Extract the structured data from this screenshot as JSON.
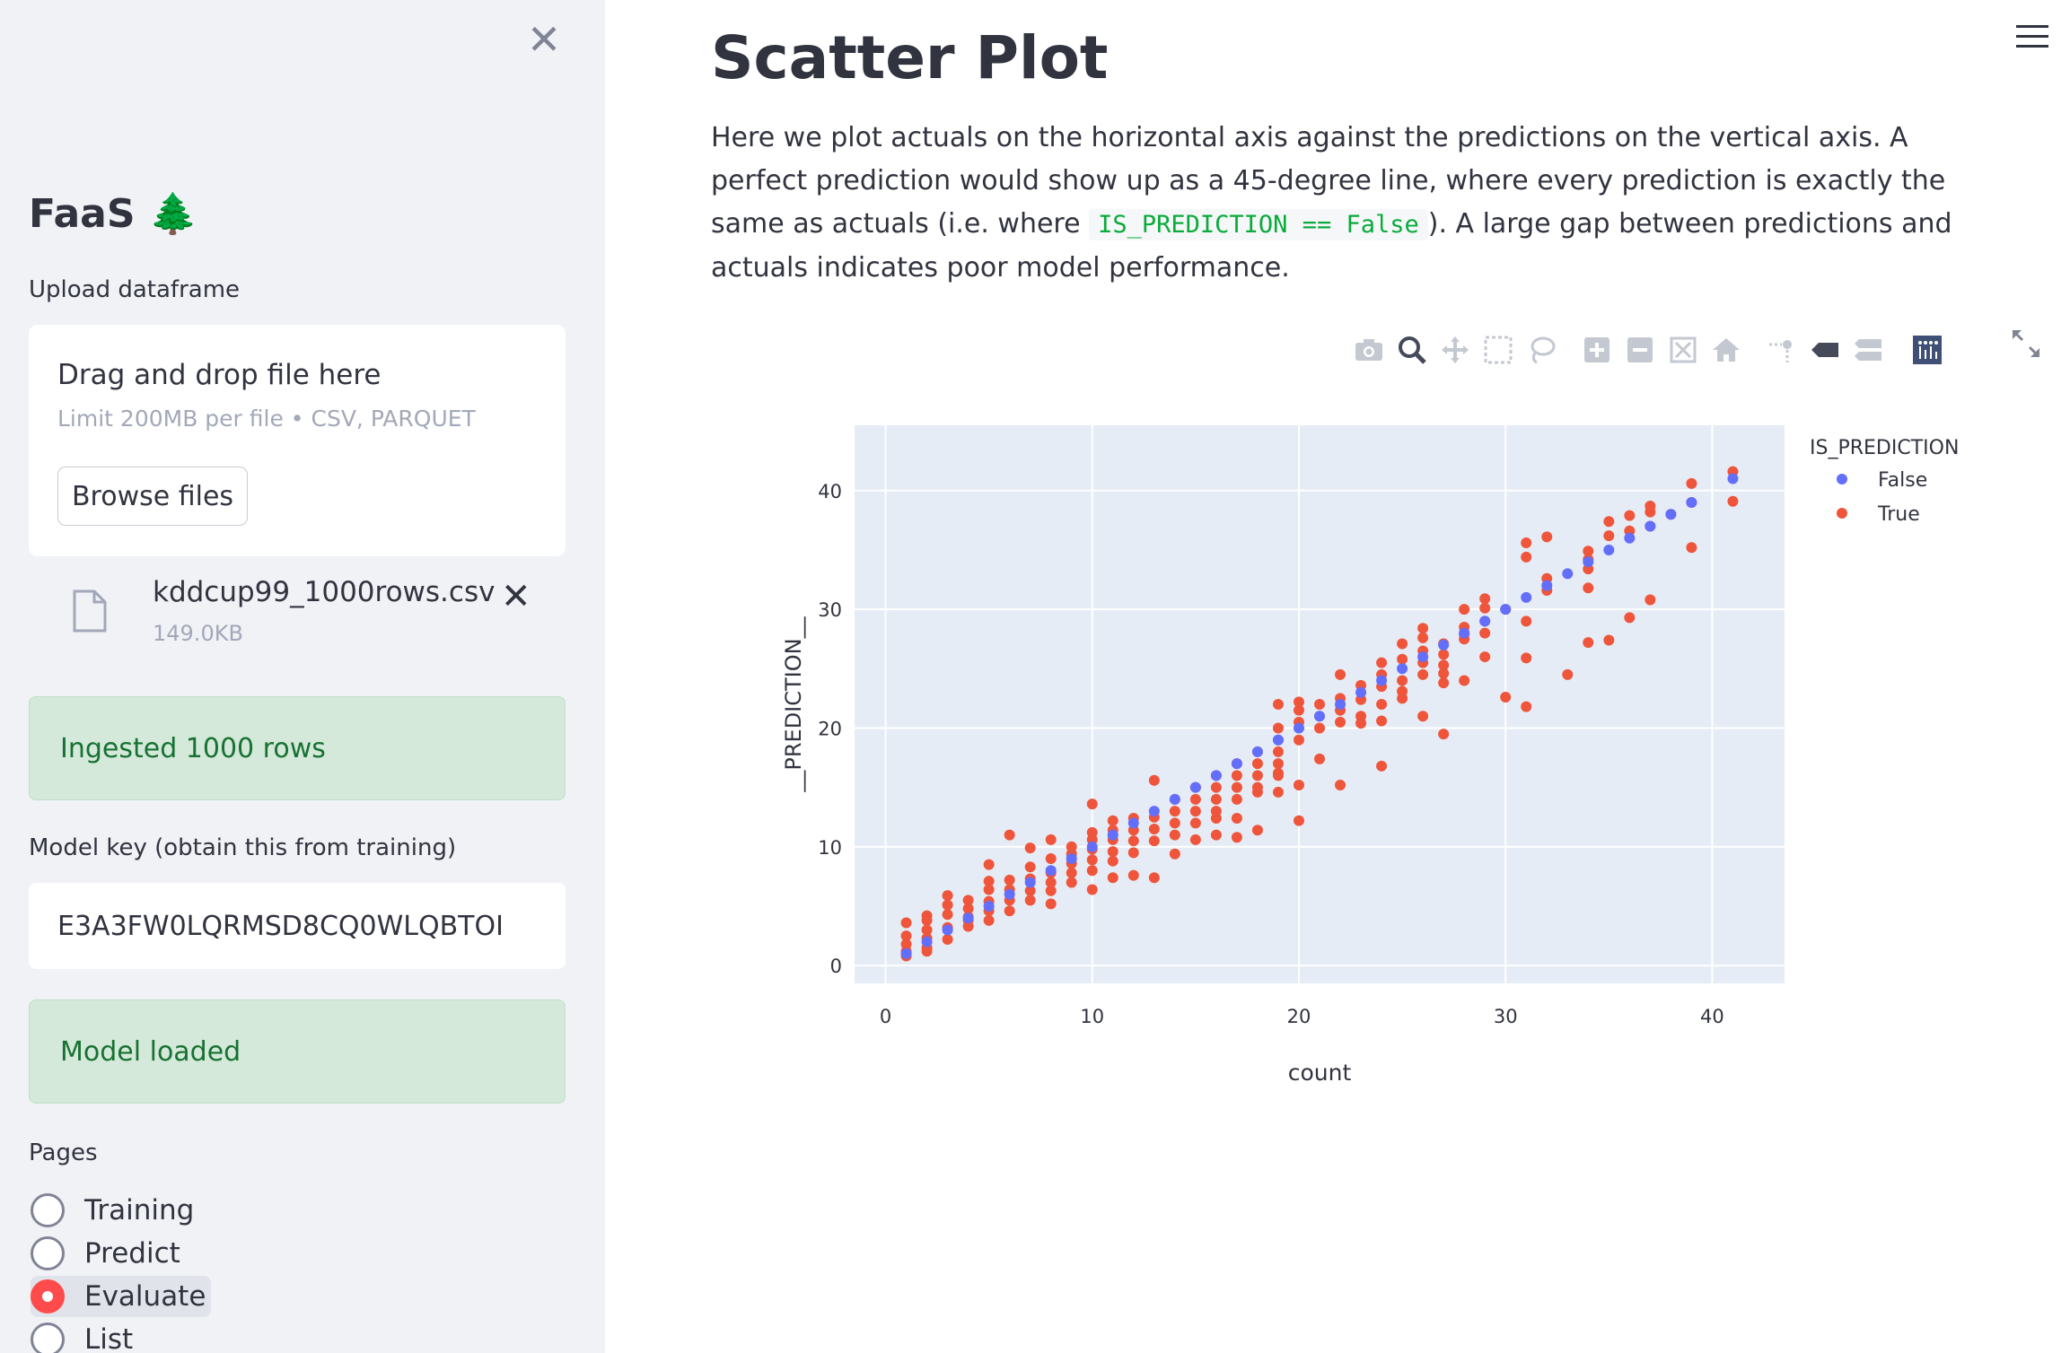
{
  "sidebar": {
    "brand": "FaaS 🌲",
    "upload_label": "Upload dataframe",
    "drop_title": "Drag and drop file here",
    "drop_limit": "Limit 200MB per file • CSV, PARQUET",
    "browse_label": "Browse files",
    "file_name": "kddcup99_1000rows.csv",
    "file_size": "149.0KB",
    "ingested_alert": "Ingested 1000 rows",
    "model_key_label": "Model key (obtain this from training)",
    "model_key_value": "E3A3FW0LQRMSD8CQ0WLQBTOI",
    "model_alert": "Model loaded",
    "pages_label": "Pages",
    "pages": [
      {
        "label": "Training",
        "selected": false
      },
      {
        "label": "Predict",
        "selected": false
      },
      {
        "label": "Evaluate",
        "selected": true
      },
      {
        "label": "List",
        "selected": false
      }
    ]
  },
  "main": {
    "title": "Scatter Plot",
    "desc_part1": "Here we plot actuals on the horizontal axis against the predictions on the vertical axis. A perfect prediction would show up as a 45-degree line, where every prediction is exactly the same as actuals (i.e. where ",
    "desc_code": "IS_PREDICTION == False",
    "desc_part2": "). A large gap between predictions and actuals indicates poor model performance."
  },
  "toolbar_icons": [
    "camera-icon",
    "zoom-icon",
    "pan-icon",
    "box-select-icon",
    "lasso-icon",
    "zoom-in-icon",
    "zoom-out-icon",
    "autoscale-icon",
    "reset-axes-icon",
    "spike-lines-icon",
    "hover-closest-icon",
    "hover-compare-icon",
    "plotly-logo-icon"
  ],
  "colors": {
    "false_series": "#636efa",
    "true_series": "#ef553b",
    "plot_bg": "#e5ecf6",
    "success_bg": "#d4e9d9",
    "success_text": "#177233",
    "radio_on": "#ff4b4b"
  },
  "chart_data": {
    "type": "scatter",
    "xlabel": "count",
    "ylabel": "__PREDICTION__",
    "xlim": [
      -1.5,
      43.5
    ],
    "ylim": [
      -1.5,
      45.5
    ],
    "xticks": [
      0,
      10,
      20,
      30,
      40
    ],
    "yticks": [
      0,
      10,
      20,
      30,
      40
    ],
    "legend_title": "IS_PREDICTION",
    "legend_position": "top-right",
    "grid": true,
    "series": [
      {
        "name": "False",
        "color": "#636efa",
        "points": [
          [
            1,
            1
          ],
          [
            2,
            2
          ],
          [
            3,
            3
          ],
          [
            4,
            4
          ],
          [
            5,
            5
          ],
          [
            6,
            6
          ],
          [
            7,
            7
          ],
          [
            8,
            8
          ],
          [
            9,
            9
          ],
          [
            10,
            10
          ],
          [
            11,
            11
          ],
          [
            12,
            12
          ],
          [
            13,
            13
          ],
          [
            14,
            14
          ],
          [
            15,
            15
          ],
          [
            16,
            16
          ],
          [
            17,
            17
          ],
          [
            18,
            18
          ],
          [
            19,
            19
          ],
          [
            20,
            20
          ],
          [
            21,
            21
          ],
          [
            22,
            22
          ],
          [
            23,
            23
          ],
          [
            24,
            24
          ],
          [
            25,
            25
          ],
          [
            26,
            26
          ],
          [
            27,
            27
          ],
          [
            28,
            28
          ],
          [
            29,
            29
          ],
          [
            30,
            30
          ],
          [
            31,
            31
          ],
          [
            32,
            32
          ],
          [
            33,
            33
          ],
          [
            34,
            34
          ],
          [
            35,
            35
          ],
          [
            36,
            36
          ],
          [
            37,
            37
          ],
          [
            38,
            38
          ],
          [
            39,
            39
          ],
          [
            41,
            41
          ]
        ]
      },
      {
        "name": "True",
        "color": "#ef553b",
        "points": [
          [
            1,
            1.2
          ],
          [
            1,
            1.8
          ],
          [
            1,
            2.5
          ],
          [
            1,
            3.6
          ],
          [
            1,
            0.8
          ],
          [
            2,
            1.5
          ],
          [
            2,
            2.3
          ],
          [
            2,
            3
          ],
          [
            2,
            3.8
          ],
          [
            2,
            4.2
          ],
          [
            2,
            1.2
          ],
          [
            3,
            2.2
          ],
          [
            3,
            3.2
          ],
          [
            3,
            4.3
          ],
          [
            3,
            5.1
          ],
          [
            3,
            5.9
          ],
          [
            4,
            3.3
          ],
          [
            4,
            4.1
          ],
          [
            4,
            4.8
          ],
          [
            4,
            5.5
          ],
          [
            4,
            3.8
          ],
          [
            5,
            3.8
          ],
          [
            5,
            4.6
          ],
          [
            5,
            5.4
          ],
          [
            5,
            6.4
          ],
          [
            5,
            7.1
          ],
          [
            5,
            8.5
          ],
          [
            6,
            4.6
          ],
          [
            6,
            5.5
          ],
          [
            6,
            6.4
          ],
          [
            6,
            7.2
          ],
          [
            6,
            11
          ],
          [
            7,
            5.5
          ],
          [
            7,
            6.3
          ],
          [
            7,
            7.3
          ],
          [
            7,
            8.3
          ],
          [
            7,
            9.9
          ],
          [
            8,
            6.3
          ],
          [
            8,
            7
          ],
          [
            8,
            7.8
          ],
          [
            8,
            9
          ],
          [
            8,
            10.6
          ],
          [
            8,
            5.2
          ],
          [
            9,
            7
          ],
          [
            9,
            7.8
          ],
          [
            9,
            8.6
          ],
          [
            9,
            9.4
          ],
          [
            9,
            10
          ],
          [
            10,
            8
          ],
          [
            10,
            8.9
          ],
          [
            10,
            9.8
          ],
          [
            10,
            10.6
          ],
          [
            10,
            11.2
          ],
          [
            10,
            13.6
          ],
          [
            10,
            6.4
          ],
          [
            11,
            8.8
          ],
          [
            11,
            9.6
          ],
          [
            11,
            10.6
          ],
          [
            11,
            11.4
          ],
          [
            11,
            12.2
          ],
          [
            11,
            7.4
          ],
          [
            12,
            9.5
          ],
          [
            12,
            10.5
          ],
          [
            12,
            11.4
          ],
          [
            12,
            12.4
          ],
          [
            12,
            7.6
          ],
          [
            13,
            10.5
          ],
          [
            13,
            11.5
          ],
          [
            13,
            12.5
          ],
          [
            13,
            15.6
          ],
          [
            13,
            7.4
          ],
          [
            14,
            11
          ],
          [
            14,
            12
          ],
          [
            14,
            13
          ],
          [
            14,
            14
          ],
          [
            14,
            9.4
          ],
          [
            15,
            12
          ],
          [
            15,
            13
          ],
          [
            15,
            14
          ],
          [
            15,
            15
          ],
          [
            15,
            10.6
          ],
          [
            16,
            13
          ],
          [
            16,
            14
          ],
          [
            16,
            15
          ],
          [
            16,
            16
          ],
          [
            16,
            12.4
          ],
          [
            16,
            11
          ],
          [
            17,
            14
          ],
          [
            17,
            15
          ],
          [
            17,
            16
          ],
          [
            17,
            17
          ],
          [
            17,
            12.4
          ],
          [
            17,
            10.8
          ],
          [
            18,
            15
          ],
          [
            18,
            16
          ],
          [
            18,
            17
          ],
          [
            18,
            18
          ],
          [
            18,
            14.6
          ],
          [
            18,
            11.4
          ],
          [
            19,
            16
          ],
          [
            19,
            17
          ],
          [
            19,
            18
          ],
          [
            19,
            19
          ],
          [
            19,
            20
          ],
          [
            19,
            22
          ],
          [
            19,
            14.6
          ],
          [
            19,
            16.2
          ],
          [
            20,
            19
          ],
          [
            20,
            20.5
          ],
          [
            20,
            21.5
          ],
          [
            20,
            22.2
          ],
          [
            20,
            15.2
          ],
          [
            20,
            12.2
          ],
          [
            21,
            20
          ],
          [
            21,
            21
          ],
          [
            21,
            22
          ],
          [
            21,
            17.4
          ],
          [
            22,
            20.5
          ],
          [
            22,
            21.5
          ],
          [
            22,
            22.5
          ],
          [
            22,
            24.5
          ],
          [
            22,
            15.2
          ],
          [
            23,
            21
          ],
          [
            23,
            22.4
          ],
          [
            23,
            23.6
          ],
          [
            23,
            20.4
          ],
          [
            24,
            22
          ],
          [
            24,
            23.5
          ],
          [
            24,
            24.5
          ],
          [
            24,
            25.5
          ],
          [
            24,
            20.6
          ],
          [
            24,
            16.8
          ],
          [
            25,
            22.5
          ],
          [
            25,
            24
          ],
          [
            25,
            25.8
          ],
          [
            25,
            27.1
          ],
          [
            25,
            23.1
          ],
          [
            26,
            25.5
          ],
          [
            26,
            26.5
          ],
          [
            26,
            27.6
          ],
          [
            26,
            28.4
          ],
          [
            26,
            24.5
          ],
          [
            26,
            21
          ],
          [
            27,
            23.8
          ],
          [
            27,
            24.6
          ],
          [
            27,
            25.3
          ],
          [
            27,
            26.2
          ],
          [
            27,
            27.1
          ],
          [
            27,
            19.5
          ],
          [
            28,
            24
          ],
          [
            28,
            27.5
          ],
          [
            28,
            28.5
          ],
          [
            28,
            30
          ],
          [
            28,
            27.9
          ],
          [
            29,
            26
          ],
          [
            29,
            28
          ],
          [
            29,
            29
          ],
          [
            29,
            30.1
          ],
          [
            29,
            30.9
          ],
          [
            30,
            30
          ],
          [
            30,
            22.6
          ],
          [
            31,
            29
          ],
          [
            31,
            35.6
          ],
          [
            31,
            34.4
          ],
          [
            31,
            25.9
          ],
          [
            31,
            21.8
          ],
          [
            32,
            31.6
          ],
          [
            32,
            32.6
          ],
          [
            32,
            36.1
          ],
          [
            33,
            24.5
          ],
          [
            34,
            31.8
          ],
          [
            34,
            33.4
          ],
          [
            34,
            34.2
          ],
          [
            34,
            34.9
          ],
          [
            34,
            27.2
          ],
          [
            35,
            36.2
          ],
          [
            35,
            37.4
          ],
          [
            35,
            27.4
          ],
          [
            36,
            36.6
          ],
          [
            36,
            37.9
          ],
          [
            36,
            29.3
          ],
          [
            37,
            37
          ],
          [
            37,
            38.2
          ],
          [
            37,
            30.8
          ],
          [
            37,
            38.7
          ],
          [
            38,
            38
          ],
          [
            39,
            39
          ],
          [
            39,
            40.6
          ],
          [
            39,
            35.2
          ],
          [
            41,
            41.6
          ],
          [
            41,
            39.1
          ]
        ]
      }
    ]
  }
}
